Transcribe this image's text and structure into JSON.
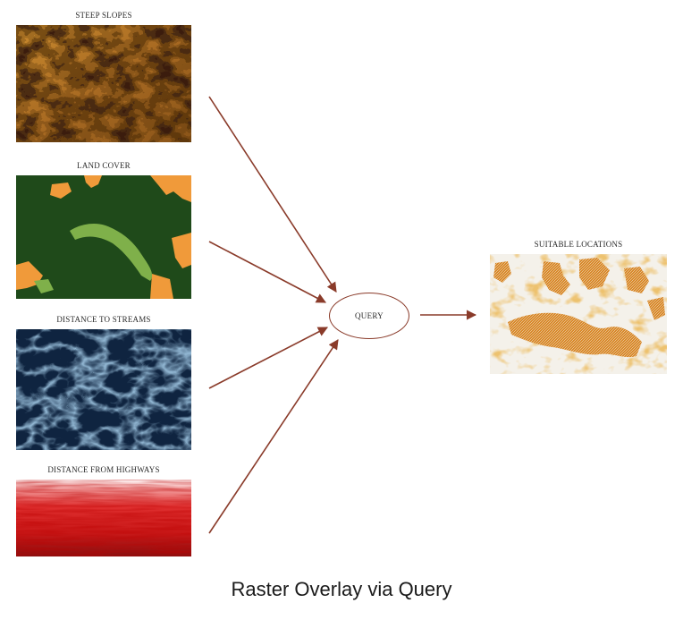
{
  "layers": [
    {
      "id": "slopes",
      "label": "STEEP SLOPES"
    },
    {
      "id": "landcover",
      "label": "LAND COVER"
    },
    {
      "id": "streams",
      "label": "DISTANCE TO STREAMS"
    },
    {
      "id": "highways",
      "label": "DISTANCE FROM HIGHWAYS"
    }
  ],
  "query": {
    "label": "QUERY"
  },
  "output": {
    "label": "SUITABLE LOCATIONS"
  },
  "caption": "Raster Overlay via Query",
  "colors": {
    "arrow": "#8a3b2a",
    "slopes_dark": "#3a1c08",
    "slopes_light": "#c98a2e",
    "landcover_forest": "#1f4a1a",
    "landcover_open": "#f09a3a",
    "landcover_light": "#7fb04a",
    "streams_dark": "#0f2440",
    "streams_light": "#8fb4d0",
    "highways_red": "#c81818",
    "output_orange": "#d9892a",
    "output_bg": "#f4f1ea"
  }
}
